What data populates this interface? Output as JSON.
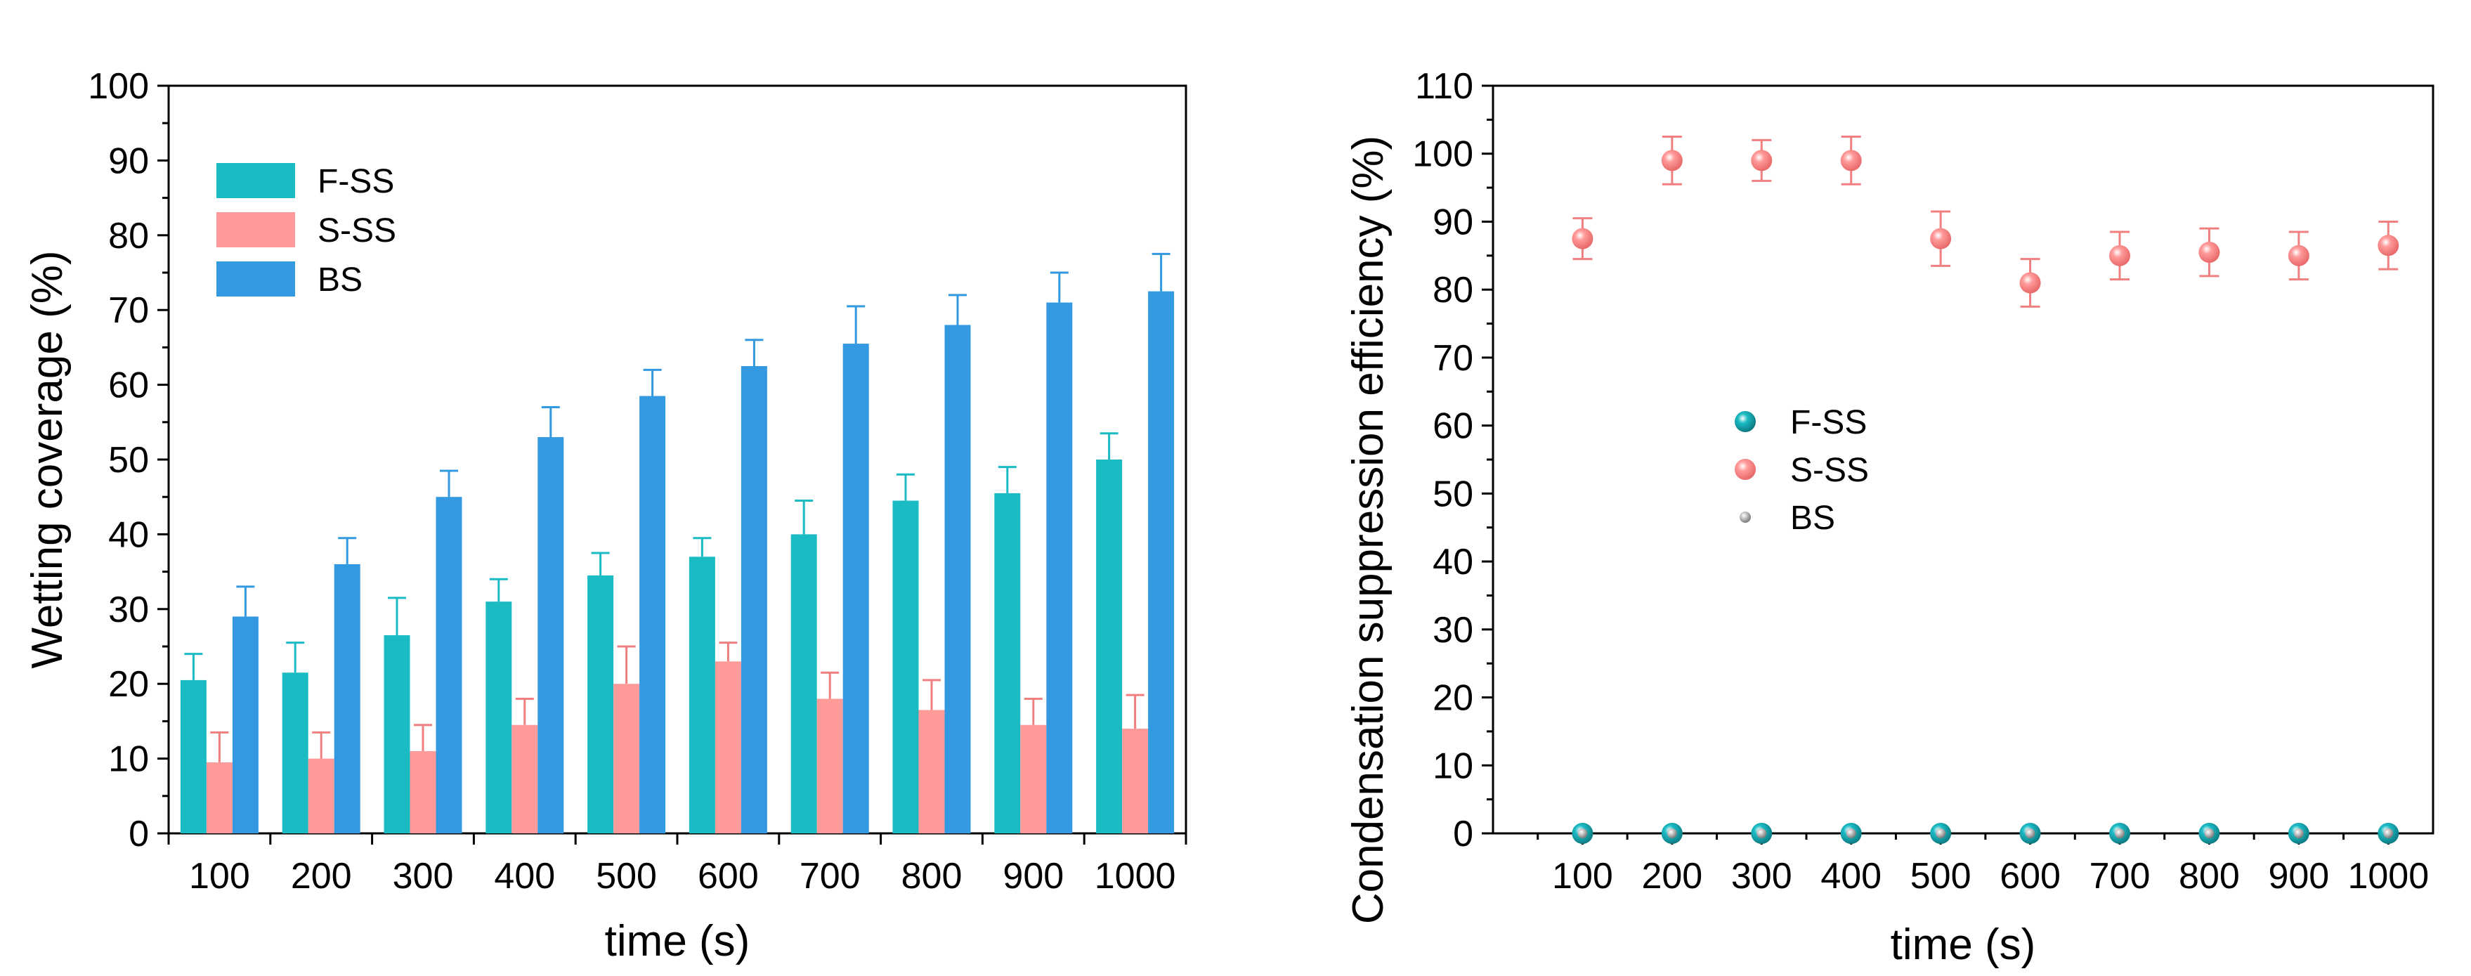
{
  "colors": {
    "F-SS": "#1BBBC4",
    "S-SS": "#FF9A9A",
    "BS": "#3399E0",
    "s_ss_error": "#F08080",
    "bs_point": "#9A9A9A"
  },
  "chart_data": [
    {
      "type": "bar",
      "xlabel": "time (s)",
      "ylabel": "Wetting coverage (%)",
      "ylim": [
        0,
        100
      ],
      "yticks": [
        0,
        10,
        20,
        30,
        40,
        50,
        60,
        70,
        80,
        90,
        100
      ],
      "categories": [
        "100",
        "200",
        "300",
        "400",
        "500",
        "600",
        "700",
        "800",
        "900",
        "1000"
      ],
      "legend_position": "top-left",
      "error_bars": "upper",
      "series": [
        {
          "name": "F-SS",
          "values": [
            20.5,
            21.5,
            26.5,
            31,
            34.5,
            37,
            40,
            44.5,
            45.5,
            50
          ],
          "errors": [
            3.5,
            4,
            5,
            3,
            3,
            2.5,
            4.5,
            3.5,
            3.5,
            3.5
          ]
        },
        {
          "name": "S-SS",
          "values": [
            9.5,
            10,
            11,
            14.5,
            20,
            23,
            18,
            16.5,
            14.5,
            14
          ],
          "errors": [
            4,
            3.5,
            3.5,
            3.5,
            5,
            2.5,
            3.5,
            4,
            3.5,
            4.5
          ]
        },
        {
          "name": "BS",
          "values": [
            29,
            36,
            45,
            53,
            58.5,
            62.5,
            65.5,
            68,
            71,
            72.5
          ],
          "errors": [
            4,
            3.5,
            3.5,
            4,
            3.5,
            3.5,
            5,
            4,
            4,
            5
          ]
        }
      ]
    },
    {
      "type": "scatter",
      "xlabel": "time (s)",
      "ylabel": "Condensation suppression efficiency (%)",
      "ylim": [
        0,
        110
      ],
      "xlim": [
        0,
        1050
      ],
      "yticks": [
        0,
        10,
        20,
        30,
        40,
        50,
        60,
        70,
        80,
        90,
        100,
        110
      ],
      "xticks": [
        100,
        200,
        300,
        400,
        500,
        600,
        700,
        800,
        900,
        1000
      ],
      "legend_position": "center-left",
      "series": [
        {
          "name": "F-SS",
          "x": [
            100,
            200,
            300,
            400,
            500,
            600,
            700,
            800,
            900,
            1000
          ],
          "y": [
            0,
            0,
            0,
            0,
            0,
            0,
            0,
            0,
            0,
            0
          ]
        },
        {
          "name": "S-SS",
          "x": [
            100,
            200,
            300,
            400,
            500,
            600,
            700,
            800,
            900,
            1000
          ],
          "y": [
            87.5,
            99,
            99,
            99,
            87.5,
            81,
            85,
            85.5,
            85,
            86.5
          ],
          "errors": [
            3,
            3.5,
            3,
            3.5,
            4,
            3.5,
            3.5,
            3.5,
            3.5,
            3.5
          ]
        },
        {
          "name": "BS",
          "x": [
            100,
            200,
            300,
            400,
            500,
            600,
            700,
            800,
            900,
            1000
          ],
          "y": [
            0,
            0,
            0,
            0,
            0,
            0,
            0,
            0,
            0,
            0
          ]
        }
      ]
    }
  ]
}
